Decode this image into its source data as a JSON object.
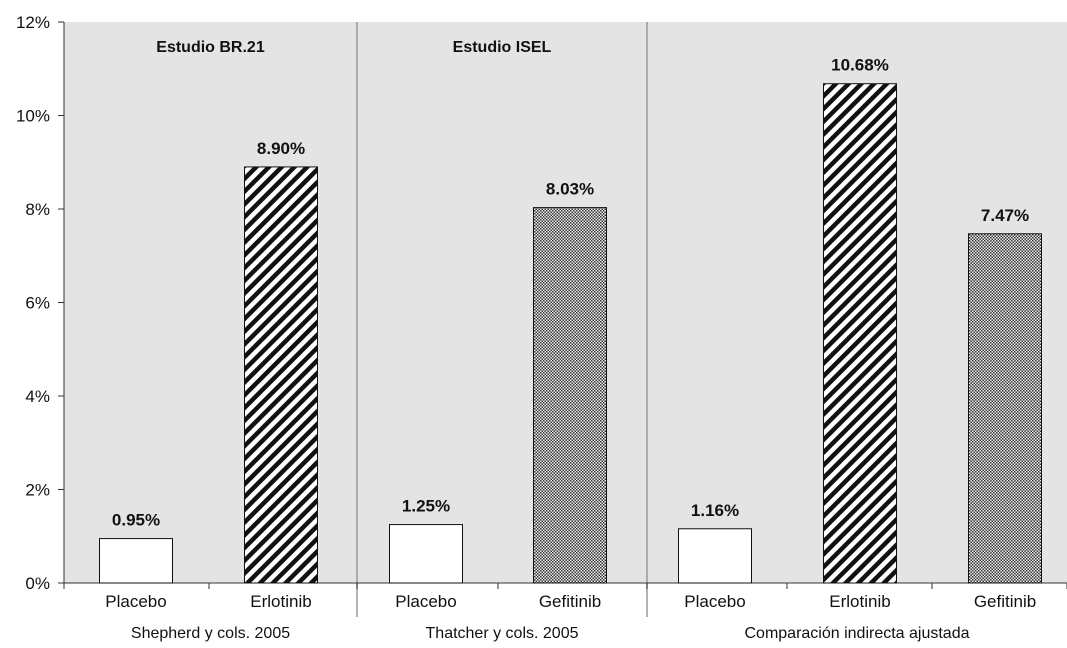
{
  "chart_data": {
    "type": "bar",
    "ylim": [
      0,
      12
    ],
    "y_ticks": [
      "0%",
      "2%",
      "4%",
      "6%",
      "8%",
      "10%",
      "12%"
    ],
    "y_tick_values": [
      0,
      2,
      4,
      6,
      8,
      10,
      12
    ],
    "background_color": "#e4e4e4",
    "grid": false,
    "groups": [
      {
        "title": "Estudio BR.21",
        "source": "Shepherd y cols. 2005",
        "bars": [
          {
            "category": "Placebo",
            "value": 0.95,
            "label": "0.95%",
            "pattern": "none"
          },
          {
            "category": "Erlotinib",
            "value": 8.9,
            "label": "8.90%",
            "pattern": "diagonal-hatch"
          }
        ]
      },
      {
        "title": "Estudio ISEL",
        "source": "Thatcher y cols. 2005",
        "bars": [
          {
            "category": "Placebo",
            "value": 1.25,
            "label": "1.25%",
            "pattern": "none"
          },
          {
            "category": "Gefitinib",
            "value": 8.03,
            "label": "8.03%",
            "pattern": "crosshatch"
          }
        ]
      },
      {
        "title": "",
        "source": "Comparación indirecta ajustada",
        "bars": [
          {
            "category": "Placebo",
            "value": 1.16,
            "label": "1.16%",
            "pattern": "none"
          },
          {
            "category": "Erlotinib",
            "value": 10.68,
            "label": "10.68%",
            "pattern": "diagonal-hatch"
          },
          {
            "category": "Gefitinib",
            "value": 7.47,
            "label": "7.47%",
            "pattern": "crosshatch"
          }
        ]
      }
    ]
  }
}
